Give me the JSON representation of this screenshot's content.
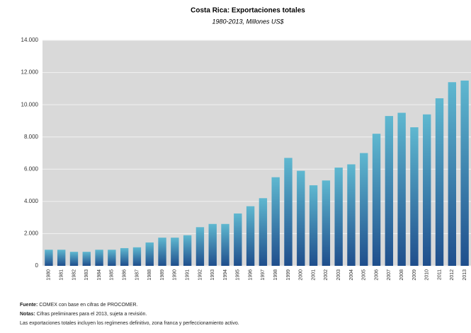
{
  "chart_data": {
    "type": "bar",
    "title": "Costa Rica: Exportaciones totales",
    "subtitle": "1980-2013,  Millones US$",
    "categories": [
      "1980",
      "1981",
      "1982",
      "1983",
      "1984",
      "1985",
      "1986",
      "1987",
      "1988",
      "1989",
      "1990",
      "1991",
      "1992",
      "1993",
      "1994",
      "1995",
      "1996",
      "1997",
      "1998",
      "1999",
      "2000",
      "2001",
      "2002",
      "2003",
      "2004",
      "2005",
      "2006",
      "2007",
      "2008",
      "2009",
      "2010",
      "2011",
      "2012",
      "2013"
    ],
    "values": [
      1000,
      1000,
      870,
      870,
      1000,
      1000,
      1100,
      1150,
      1450,
      1750,
      1750,
      1900,
      2400,
      2600,
      2600,
      3250,
      3700,
      4200,
      5500,
      6700,
      5900,
      5000,
      5300,
      6100,
      6300,
      7000,
      8200,
      9300,
      9500,
      8600,
      9400,
      10400,
      11400,
      11500
    ],
    "color": [
      "#5fb8d0",
      "#1f4e8c"
    ],
    "ylim": [
      0,
      14000
    ],
    "yticks": [
      0,
      {
        "value": 2000,
        "label": "2.000"
      },
      {
        "value": 4000,
        "label": "4.000"
      },
      {
        "value": 6000,
        "label": "6.000"
      },
      {
        "value": 8000,
        "label": "8.000"
      },
      {
        "value": 10000,
        "label": "10.000"
      },
      {
        "value": 12000,
        "label": "12.000"
      },
      {
        "value": 14000,
        "label": "14.000"
      }
    ],
    "grid": true,
    "notes": [
      {
        "label": "Fuente:",
        "text": "COMEX con base en cifras de PROCOMER."
      },
      {
        "label": "Notas:",
        "text": "Cifras preliminares para el 2013, sujeta a revisión."
      },
      {
        "label": "",
        "text": "Las exportaciones totales incluyen los regímenes definitivo, zona franca y perfeccionamiento activo."
      }
    ]
  }
}
